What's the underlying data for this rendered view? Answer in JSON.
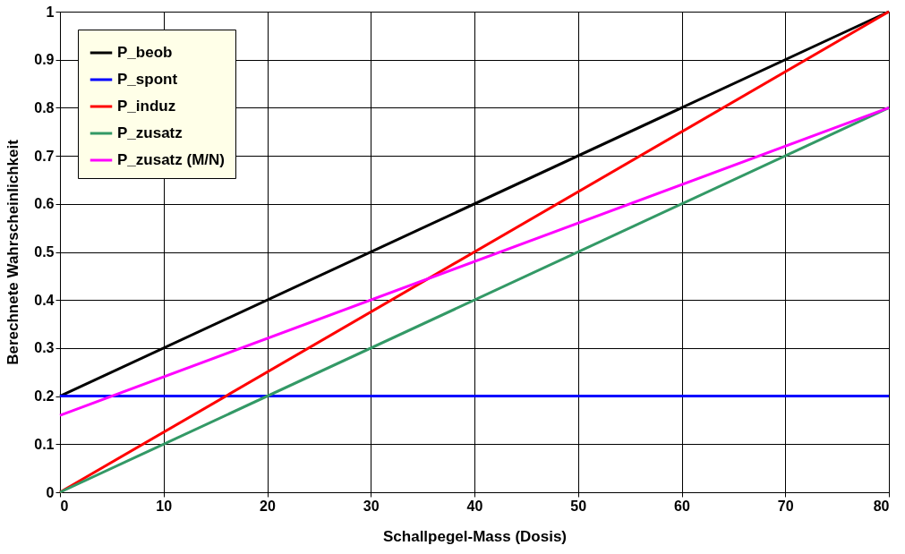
{
  "chart_data": {
    "type": "line",
    "xlabel": "Schallpegel-Mass (Dosis)",
    "ylabel": "Berechnete Wahrscheinlichkeit",
    "x": [
      0,
      80
    ],
    "series": [
      {
        "name": "P_beob",
        "color": "#000000",
        "values": [
          0.2,
          1.0
        ]
      },
      {
        "name": "P_spont",
        "color": "#0000ff",
        "values": [
          0.2,
          0.2
        ]
      },
      {
        "name": "P_induz",
        "color": "#ff0000",
        "values": [
          0.0,
          1.0
        ]
      },
      {
        "name": "P_zusatz",
        "color": "#339966",
        "values": [
          0.0,
          0.8
        ]
      },
      {
        "name": "P_zusatz (M/N)",
        "color": "#ff00ff",
        "values": [
          0.16,
          0.8
        ]
      }
    ],
    "xlim": [
      0,
      80
    ],
    "xticks": [
      0,
      10,
      20,
      30,
      40,
      50,
      60,
      70,
      80
    ],
    "ylim": [
      0,
      1
    ],
    "yticks": [
      0,
      0.1,
      0.2,
      0.3,
      0.4,
      0.5,
      0.6,
      0.7,
      0.8,
      0.9,
      1
    ],
    "grid": true,
    "legend": "top left",
    "marker": "none",
    "line_style": "solid"
  }
}
